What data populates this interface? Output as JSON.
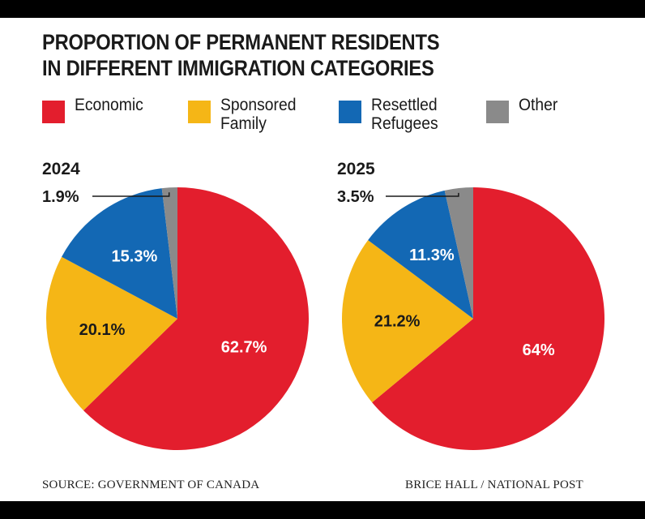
{
  "title_lines": [
    "PROPORTION OF PERMANENT RESIDENTS",
    "IN DIFFERENT IMMIGRATION CATEGORIES"
  ],
  "legend": [
    {
      "lines": [
        "Economic"
      ],
      "color": "#e31e2d"
    },
    {
      "lines": [
        "Sponsored",
        "Family"
      ],
      "color": "#f5b616"
    },
    {
      "lines": [
        "Resettled",
        "Refugees"
      ],
      "color": "#1368b4"
    },
    {
      "lines": [
        "Other"
      ],
      "color": "#8a8a8a"
    }
  ],
  "chart_data": [
    {
      "type": "pie",
      "title": "2024",
      "slices": [
        {
          "label": "Economic",
          "value": 62.7,
          "display": "62.7%",
          "color": "#e31e2d"
        },
        {
          "label": "Sponsored Family",
          "value": 20.1,
          "display": "20.1%",
          "color": "#f5b616"
        },
        {
          "label": "Resettled Refugees",
          "value": 15.3,
          "display": "15.3%",
          "color": "#1368b4"
        },
        {
          "label": "Other",
          "value": 1.9,
          "display": "1.9%",
          "color": "#8a8a8a"
        }
      ]
    },
    {
      "type": "pie",
      "title": "2025",
      "slices": [
        {
          "label": "Economic",
          "value": 64,
          "display": "64%",
          "color": "#e31e2d"
        },
        {
          "label": "Sponsored Family",
          "value": 21.2,
          "display": "21.2%",
          "color": "#f5b616"
        },
        {
          "label": "Resettled Refugees",
          "value": 11.3,
          "display": "11.3%",
          "color": "#1368b4"
        },
        {
          "label": "Other",
          "value": 3.5,
          "display": "3.5%",
          "color": "#8a8a8a"
        }
      ]
    }
  ],
  "footer": {
    "source": "SOURCE: GOVERNMENT OF CANADA",
    "credit": "BRICE HALL  / NATIONAL POST"
  }
}
